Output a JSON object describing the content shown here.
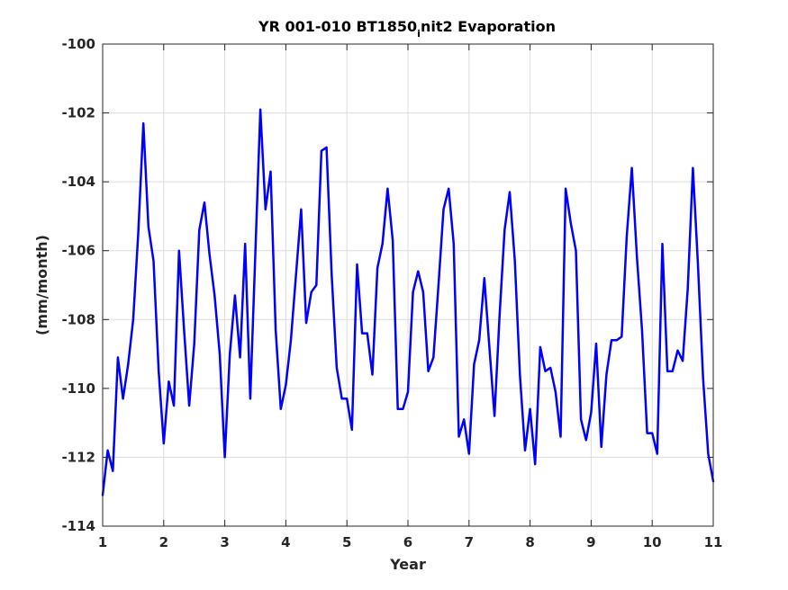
{
  "chart_data": {
    "type": "line",
    "title_main": "YR 001-010 BT1850",
    "title_sub": "i",
    "title_rest": "nit2 Evaporation",
    "xlabel": "Year",
    "ylabel": "(mm/month)",
    "xlim": [
      1,
      11
    ],
    "ylim": [
      -114,
      -100
    ],
    "xticks": [
      1,
      2,
      3,
      4,
      5,
      6,
      7,
      8,
      9,
      10,
      11
    ],
    "yticks": [
      -114,
      -112,
      -110,
      -108,
      -106,
      -104,
      -102,
      -100
    ],
    "grid": true,
    "line_color": "#0000ff",
    "series": [
      {
        "x": [
          1.0,
          1.083,
          1.167,
          1.25,
          1.333,
          1.417,
          1.5,
          1.583,
          1.667,
          1.75,
          1.833,
          1.917,
          2.0,
          2.083,
          2.167,
          2.25,
          2.333,
          2.417,
          2.5,
          2.583,
          2.667,
          2.75,
          2.833,
          2.917,
          3.0,
          3.083,
          3.167,
          3.25,
          3.333,
          3.417,
          3.5,
          3.583,
          3.667,
          3.75,
          3.833,
          3.917,
          4.0,
          4.083,
          4.167,
          4.25,
          4.333,
          4.417,
          4.5,
          4.583,
          4.667,
          4.75,
          4.833,
          4.917,
          5.0,
          5.083,
          5.167,
          5.25,
          5.333,
          5.417,
          5.5,
          5.583,
          5.667,
          5.75,
          5.833,
          5.917,
          6.0,
          6.083,
          6.167,
          6.25,
          6.333,
          6.417,
          6.5,
          6.583,
          6.667,
          6.75,
          6.833,
          6.917,
          7.0,
          7.083,
          7.167,
          7.25,
          7.333,
          7.417,
          7.5,
          7.583,
          7.667,
          7.75,
          7.833,
          7.917,
          8.0,
          8.083,
          8.167,
          8.25,
          8.333,
          8.417,
          8.5,
          8.583,
          8.667,
          8.75,
          8.833,
          8.917,
          9.0,
          9.083,
          9.167,
          9.25,
          9.333,
          9.417,
          9.5,
          9.583,
          9.667,
          9.75,
          9.833,
          9.917,
          10.0,
          10.083,
          10.167,
          10.25,
          10.333,
          10.417,
          10.5,
          10.583,
          10.667,
          10.75,
          10.833,
          10.917,
          11.0
        ],
        "values": [
          -113.1,
          -111.8,
          -112.4,
          -109.1,
          -110.3,
          -109.3,
          -108.0,
          -105.5,
          -102.3,
          -105.3,
          -106.3,
          -109.5,
          -111.6,
          -109.8,
          -110.5,
          -106.0,
          -108.3,
          -110.5,
          -108.7,
          -105.4,
          -104.6,
          -106.1,
          -107.3,
          -109.0,
          -112.0,
          -109.0,
          -107.3,
          -109.1,
          -105.8,
          -110.3,
          -106.1,
          -101.9,
          -104.8,
          -103.7,
          -108.3,
          -110.6,
          -109.9,
          -108.6,
          -106.7,
          -104.8,
          -108.1,
          -107.2,
          -107.0,
          -103.1,
          -103.0,
          -106.7,
          -109.4,
          -110.3,
          -110.3,
          -111.2,
          -106.4,
          -108.4,
          -108.4,
          -109.6,
          -106.5,
          -105.8,
          -104.2,
          -105.7,
          -110.6,
          -110.6,
          -110.1,
          -107.2,
          -106.6,
          -107.2,
          -109.5,
          -109.1,
          -107.0,
          -104.8,
          -104.2,
          -105.8,
          -111.4,
          -110.9,
          -111.9,
          -109.3,
          -108.6,
          -106.8,
          -108.8,
          -110.8,
          -107.9,
          -105.4,
          -104.3,
          -106.3,
          -109.6,
          -111.8,
          -110.6,
          -112.2,
          -108.8,
          -109.5,
          -109.4,
          -110.1,
          -111.4,
          -104.2,
          -105.2,
          -106.0,
          -110.9,
          -111.5,
          -110.7,
          -108.7,
          -111.7,
          -109.6,
          -108.6,
          -108.6,
          -108.5,
          -105.6,
          -103.6,
          -106.2,
          -108.3,
          -111.3,
          -111.3,
          -111.9,
          -105.8,
          -109.5,
          -109.5,
          -108.9,
          -109.2,
          -107.1,
          -103.6,
          -106.4,
          -109.7,
          -111.9,
          -112.7
        ]
      }
    ]
  }
}
